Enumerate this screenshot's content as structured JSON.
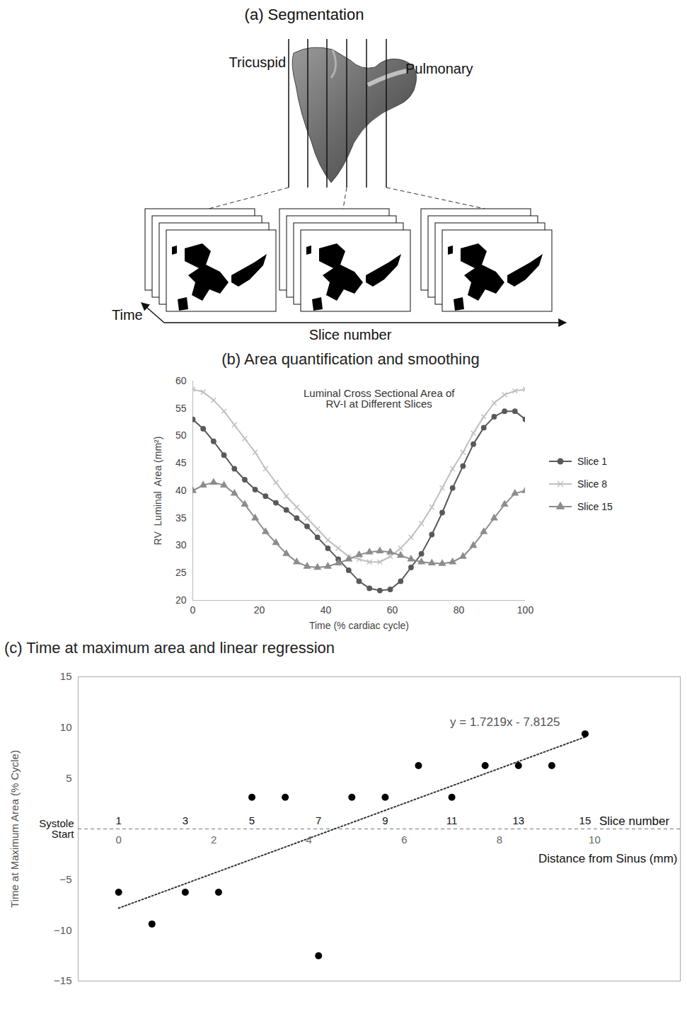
{
  "diagram": {
    "title": "(a) Segmentation",
    "labels": {
      "tricuspid": "Tricuspid",
      "pulmonary": "Pulmonary",
      "time_axis": "Time",
      "slice_axis": "Slice number"
    }
  },
  "chart_data": [
    {
      "type": "line",
      "title": "(b)  Area quantification and smoothing",
      "subtitle": "Luminal Cross Sectional Area of RV-I at Different Slices",
      "x_label": "Time (% cardiac cycle)",
      "y_label": "RV  Luminal  Area (mm²)",
      "x": [
        0,
        3.125,
        6.25,
        9.375,
        12.5,
        15.625,
        18.75,
        21.875,
        25,
        28.125,
        31.25,
        34.375,
        37.5,
        40.625,
        43.75,
        46.875,
        50,
        53.125,
        56.25,
        59.375,
        62.5,
        65.625,
        68.75,
        71.875,
        75,
        78.125,
        81.25,
        84.375,
        87.5,
        90.625,
        93.75,
        96.875,
        100
      ],
      "series": [
        {
          "name": "Slice 1",
          "color": "#595959",
          "marker": "circle",
          "line_style": "solid",
          "values": [
            53,
            51.3,
            49,
            46.5,
            44,
            42,
            40.2,
            39,
            37.8,
            36.5,
            35,
            33.5,
            31.5,
            29.5,
            27.5,
            25.5,
            23.5,
            22.2,
            21.8,
            22,
            23.5,
            26,
            28.5,
            32,
            36,
            40.5,
            44.5,
            48.5,
            51.5,
            53.5,
            54.5,
            54.5,
            53
          ]
        },
        {
          "name": "Slice 8",
          "color": "#bfbfbf",
          "marker": "x",
          "line_style": "solid",
          "values": [
            58.5,
            58,
            56.5,
            54.5,
            52,
            49.5,
            47,
            44,
            41.5,
            39,
            37,
            35,
            33,
            31,
            29.5,
            28,
            27.5,
            27,
            27,
            28,
            29.5,
            31.5,
            34,
            37,
            40.5,
            44,
            47,
            50.5,
            53.5,
            56,
            57.5,
            58.2,
            58.5
          ]
        },
        {
          "name": "Slice 15",
          "color": "#8c8c8c",
          "marker": "triangle",
          "line_style": "solid",
          "values": [
            40,
            41,
            41.5,
            41,
            39.5,
            37.5,
            35,
            32.5,
            30.5,
            28.5,
            27,
            26.2,
            26,
            26.2,
            26.8,
            27.5,
            28.3,
            28.8,
            29,
            28.8,
            28.2,
            27.5,
            27,
            26.8,
            26.7,
            27,
            28,
            30,
            32.5,
            35,
            37.5,
            39.5,
            40
          ]
        }
      ],
      "xlim": [
        0,
        100
      ],
      "xticks": [
        0,
        20,
        40,
        60,
        80,
        100
      ],
      "ylim": [
        20,
        60
      ],
      "yticks": [
        20,
        25,
        30,
        35,
        40,
        45,
        50,
        55,
        60
      ],
      "grid": false,
      "legend": "right"
    },
    {
      "type": "scatter",
      "title": "(c)  Time at maximum area and linear regression",
      "x_label": "Distance from Sinus (mm)",
      "y_label": "Time at Maximum Area (% Cycle)",
      "x": [
        0,
        0.7,
        1.4,
        2.1,
        2.8,
        3.5,
        4.2,
        4.9,
        5.6,
        6.3,
        7.0,
        7.7,
        8.4,
        9.1,
        9.8
      ],
      "values": [
        -6.25,
        -9.375,
        -6.25,
        -6.25,
        3.125,
        3.125,
        -12.5,
        3.125,
        3.125,
        6.25,
        3.125,
        6.25,
        6.25,
        6.25,
        9.375
      ],
      "color": "#000000",
      "marker": "circle",
      "slice_labels": [
        1,
        null,
        3,
        null,
        5,
        null,
        7,
        null,
        9,
        null,
        11,
        null,
        13,
        null,
        15
      ],
      "slice_axis_label": "Slice number",
      "zero_line_label": "Systole Start",
      "trendline": {
        "slope": 1.7219,
        "intercept": -7.8125,
        "label": "y = 1.7219x - 7.8125",
        "line_style": "dotted"
      },
      "xlim": [
        -0.85,
        11.8
      ],
      "xticks": [
        0,
        2,
        4,
        6,
        8,
        10
      ],
      "ylim": [
        -15,
        15
      ],
      "yticks": [
        -15,
        -10,
        -5,
        5,
        10,
        15
      ],
      "grid": false
    }
  ]
}
